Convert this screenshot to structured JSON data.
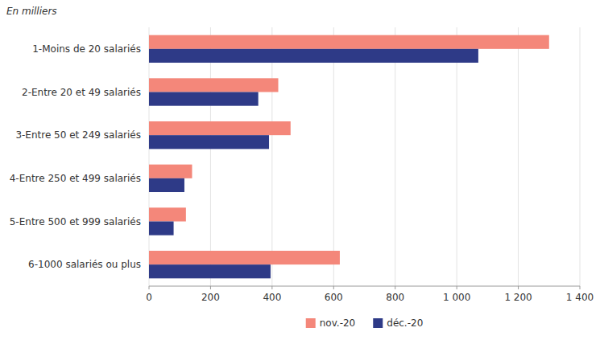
{
  "chart_data": {
    "type": "bar",
    "orientation": "horizontal",
    "subtitle": "En milliers",
    "categories": [
      "1-Moins de 20 salariés",
      "2-Entre 20 et 49 salariés",
      "3-Entre 50 et 249 salariés",
      "4-Entre 250 et 499 salariés",
      "5-Entre 500 et 999 salariés",
      "6-1000 salariés ou plus"
    ],
    "series": [
      {
        "name": "nov.-20",
        "color": "#F4877A",
        "values": [
          1300,
          420,
          460,
          140,
          120,
          620
        ]
      },
      {
        "name": "déc.-20",
        "color": "#2E3A87",
        "values": [
          1070,
          355,
          390,
          115,
          80,
          395
        ]
      }
    ],
    "xlim": [
      0,
      1400
    ],
    "xticks": [
      0,
      200,
      400,
      600,
      800,
      {
        "value": 1000,
        "label": "1 000"
      },
      {
        "value": 1200,
        "label": "1 200"
      },
      {
        "value": 1400,
        "label": "1 400"
      }
    ],
    "grid": true,
    "legend": "bottom"
  }
}
